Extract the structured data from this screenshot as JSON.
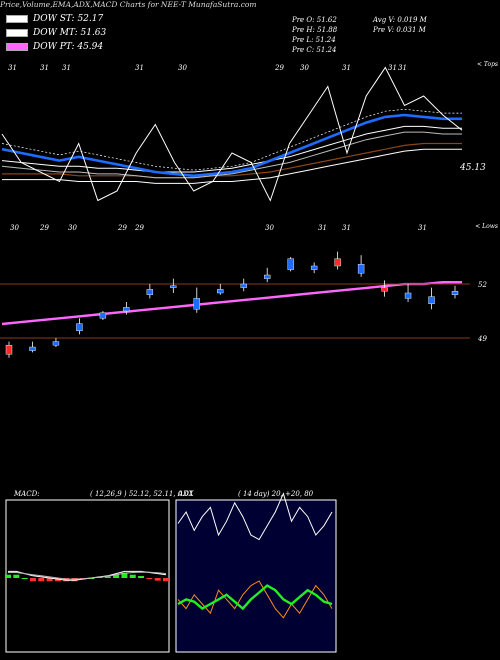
{
  "header": {
    "title": "Price,Volume,EMA,ADX,MACD Charts for NEE-T MunafaSutra.com",
    "dow_st": "DOW ST: 52.17",
    "dow_mt": "DOW MT: 51.63",
    "dow_pt": "DOW PT: 45.94",
    "colors": {
      "st": "#ffffff",
      "mt": "#ffffff",
      "pt": "#ff66ff"
    }
  },
  "info": {
    "prev_open": "Pre   O: 51.62",
    "prev_high": "Pre   H: 51.88",
    "prev_low": "Pre   L: 51.24",
    "prev_close": "Pre   C: 51.24",
    "avg_volume": "Avg V: 0.019 M",
    "prev_volume": "Pre   V: 0.031 M"
  },
  "chart_data": [
    {
      "type": "line",
      "name": "price-indicator-panel",
      "top_dates": [
        "31",
        "31",
        "31",
        "31",
        "30",
        "29",
        "30",
        "31",
        "31",
        "31",
        "31",
        "31"
      ],
      "top_right_label": "< Tops",
      "bottom_dates": [
        "30",
        "29",
        "30",
        "29",
        "29",
        "30",
        "31",
        "31",
        "31"
      ],
      "bottom_right_label": "< Lows",
      "level_label": "45.13",
      "price_levels": [
        {
          "label": "52",
          "value": 52.0
        },
        {
          "label": "49",
          "value": 49.0
        }
      ],
      "ema_fast": [
        55.2,
        55.0,
        54.8,
        54.6,
        54.8,
        54.6,
        54.4,
        54.2,
        54.0,
        53.9,
        53.8,
        53.9,
        54.0,
        54.2,
        54.6,
        55.0,
        55.4,
        55.8,
        56.2,
        56.6,
        56.9,
        57.0,
        56.9,
        56.8,
        56.8
      ],
      "ema_mid": [
        54.6,
        54.5,
        54.4,
        54.3,
        54.3,
        54.2,
        54.2,
        54.1,
        54.0,
        54.0,
        54.0,
        54.1,
        54.2,
        54.4,
        54.6,
        54.8,
        55.1,
        55.4,
        55.7,
        56.0,
        56.2,
        56.4,
        56.4,
        56.3,
        56.3
      ],
      "ema_slow": [
        53.6,
        53.6,
        53.6,
        53.6,
        53.5,
        53.5,
        53.5,
        53.5,
        53.4,
        53.4,
        53.4,
        53.5,
        53.5,
        53.6,
        53.7,
        53.9,
        54.1,
        54.3,
        54.5,
        54.7,
        54.9,
        55.1,
        55.2,
        55.2,
        55.2
      ],
      "ema_long": [
        46.0,
        46.1,
        46.2,
        46.3,
        46.4,
        46.5,
        46.6,
        46.7,
        46.8,
        46.9,
        47.0,
        47.1,
        47.2,
        47.3,
        47.4,
        47.5,
        47.6,
        47.7,
        47.8,
        47.9,
        48.0,
        48.1,
        48.1,
        48.2,
        48.2
      ],
      "close_line": [
        56.0,
        54.5,
        54.0,
        53.5,
        55.5,
        52.5,
        53.0,
        55.0,
        56.5,
        54.5,
        53.0,
        53.5,
        55.0,
        54.5,
        52.5,
        55.5,
        57.0,
        58.5,
        55.0,
        58.0,
        59.5,
        57.5,
        58.0,
        57.0,
        56.2
      ],
      "candles": [
        {
          "o": 48.6,
          "c": 48.1,
          "h": 48.8,
          "l": 47.9,
          "up": false
        },
        {
          "o": 48.3,
          "c": 48.5,
          "h": 48.8,
          "l": 48.2,
          "up": true
        },
        {
          "o": 48.6,
          "c": 48.8,
          "h": 49.0,
          "l": 48.5,
          "up": true
        },
        {
          "o": 49.4,
          "c": 49.8,
          "h": 50.1,
          "l": 49.2,
          "up": true
        },
        {
          "o": 50.1,
          "c": 50.4,
          "h": 50.5,
          "l": 50.0,
          "up": true
        },
        {
          "o": 50.5,
          "c": 50.7,
          "h": 51.0,
          "l": 50.3,
          "up": true
        },
        {
          "o": 51.4,
          "c": 51.7,
          "h": 52.0,
          "l": 51.2,
          "up": true
        },
        {
          "o": 51.8,
          "c": 51.9,
          "h": 52.3,
          "l": 51.5,
          "up": true
        },
        {
          "o": 50.6,
          "c": 51.2,
          "h": 51.8,
          "l": 50.4,
          "up": true
        },
        {
          "o": 51.5,
          "c": 51.7,
          "h": 52.0,
          "l": 51.4,
          "up": true
        },
        {
          "o": 51.8,
          "c": 52.0,
          "h": 52.3,
          "l": 51.6,
          "up": true
        },
        {
          "o": 52.3,
          "c": 52.5,
          "h": 52.9,
          "l": 52.1,
          "up": true
        },
        {
          "o": 52.8,
          "c": 53.4,
          "h": 53.5,
          "l": 52.7,
          "up": true
        },
        {
          "o": 52.8,
          "c": 53.0,
          "h": 53.2,
          "l": 52.6,
          "up": true
        },
        {
          "o": 53.4,
          "c": 53.0,
          "h": 53.8,
          "l": 52.8,
          "up": false
        },
        {
          "o": 52.6,
          "c": 53.1,
          "h": 53.6,
          "l": 52.4,
          "up": true
        },
        {
          "o": 51.8,
          "c": 51.6,
          "h": 52.2,
          "l": 51.3,
          "up": false
        },
        {
          "o": 51.2,
          "c": 51.5,
          "h": 52.0,
          "l": 51.0,
          "up": true
        },
        {
          "o": 50.9,
          "c": 51.3,
          "h": 51.8,
          "l": 50.6,
          "up": true
        },
        {
          "o": 51.4,
          "c": 51.6,
          "h": 51.9,
          "l": 51.2,
          "up": true
        }
      ]
    },
    {
      "type": "line",
      "name": "macd-panel",
      "title": "MACD:",
      "params": "( 12,26,9 ) 52.12,  52.11,  0.01",
      "macd": [
        0.3,
        0.3,
        0.2,
        0.1,
        0.05,
        0.0,
        -0.05,
        -0.1,
        -0.1,
        -0.05,
        0.0,
        0.05,
        0.1,
        0.2,
        0.3,
        0.3,
        0.3,
        0.25,
        0.2,
        0.15
      ],
      "signal": [
        0.25,
        0.25,
        0.2,
        0.15,
        0.1,
        0.05,
        0.0,
        -0.05,
        -0.05,
        -0.03,
        0.0,
        0.03,
        0.08,
        0.15,
        0.22,
        0.25,
        0.27,
        0.26,
        0.24,
        0.2
      ],
      "histogram": [
        0.05,
        0.05,
        0.0,
        -0.05,
        -0.05,
        -0.05,
        -0.05,
        -0.05,
        -0.05,
        -0.02,
        0.0,
        0.02,
        0.02,
        0.05,
        0.08,
        0.05,
        0.03,
        -0.01,
        -0.04,
        -0.05
      ]
    },
    {
      "type": "line",
      "name": "adx-panel",
      "title": "ADX",
      "params": "( 14  day) 20,  +20,  80",
      "plus_di": [
        35,
        40,
        32,
        38,
        42,
        30,
        36,
        44,
        38,
        30,
        28,
        34,
        40,
        48,
        36,
        42,
        38,
        30,
        34,
        40
      ],
      "minus_di": [
        22,
        18,
        24,
        20,
        16,
        26,
        22,
        18,
        24,
        28,
        30,
        24,
        18,
        14,
        20,
        16,
        22,
        28,
        24,
        18
      ],
      "adx": [
        20,
        22,
        21,
        18,
        20,
        22,
        24,
        21,
        18,
        22,
        25,
        28,
        26,
        22,
        20,
        23,
        26,
        24,
        21,
        20
      ]
    }
  ]
}
